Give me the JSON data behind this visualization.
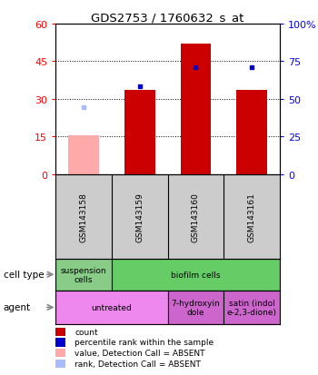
{
  "title": "GDS2753 / 1760632_s_at",
  "samples": [
    "GSM143158",
    "GSM143159",
    "GSM143160",
    "GSM143161"
  ],
  "bar_values": [
    15.5,
    33.5,
    52.0,
    33.5
  ],
  "bar_colors": [
    "#ffaaaa",
    "#cc0000",
    "#cc0000",
    "#cc0000"
  ],
  "percentile_values": [
    26.5,
    35.0,
    42.5,
    42.5
  ],
  "percentile_absent": [
    true,
    false,
    false,
    false
  ],
  "ylim_left": [
    0,
    60
  ],
  "ylim_right": [
    0,
    100
  ],
  "yticks_left": [
    0,
    15,
    30,
    45,
    60
  ],
  "yticks_right": [
    0,
    25,
    50,
    75,
    100
  ],
  "ytick_labels_left": [
    "0",
    "15",
    "30",
    "45",
    "60"
  ],
  "ytick_labels_right": [
    "0",
    "25",
    "50",
    "75",
    "100%"
  ],
  "cell_type_spans": [
    [
      0,
      1,
      "suspension\ncells",
      "#88cc88"
    ],
    [
      1,
      4,
      "biofilm cells",
      "#66cc66"
    ]
  ],
  "agent_spans": [
    [
      0,
      2,
      "untreated",
      "#ee88ee"
    ],
    [
      2,
      3,
      "7-hydroxyin\ndole",
      "#cc66cc"
    ],
    [
      3,
      4,
      "satin (indol\ne-2,3-dione)",
      "#cc66cc"
    ]
  ],
  "legend_items": [
    {
      "color": "#cc0000",
      "label": "count"
    },
    {
      "color": "#0000cc",
      "label": "percentile rank within the sample"
    },
    {
      "color": "#ffaaaa",
      "label": "value, Detection Call = ABSENT"
    },
    {
      "color": "#aabbff",
      "label": "rank, Detection Call = ABSENT"
    }
  ],
  "bar_width": 0.55,
  "background_color": "#ffffff",
  "label_bg": "#cccccc"
}
